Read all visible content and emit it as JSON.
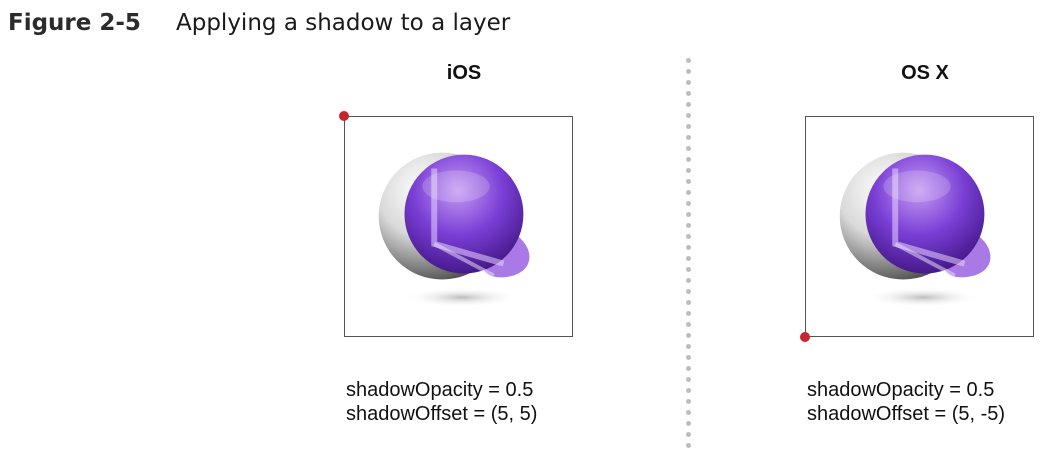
{
  "figure": {
    "number": "Figure 2-5",
    "caption": "Applying a shadow to a layer"
  },
  "panels": [
    {
      "title": "iOS",
      "origin": "top-left",
      "properties": [
        "shadowOpacity = 0.5",
        "shadowOffset = (5, 5)"
      ]
    },
    {
      "title": "OS X",
      "origin": "bottom-left",
      "properties": [
        "shadowOpacity = 0.5",
        "shadowOffset = (5, -5)"
      ]
    }
  ],
  "colors": {
    "origin_marker": "#c6262e",
    "sphere_purple": "#6a2fc4",
    "frame_border": "#555555",
    "divider": "#bdbdbd"
  }
}
